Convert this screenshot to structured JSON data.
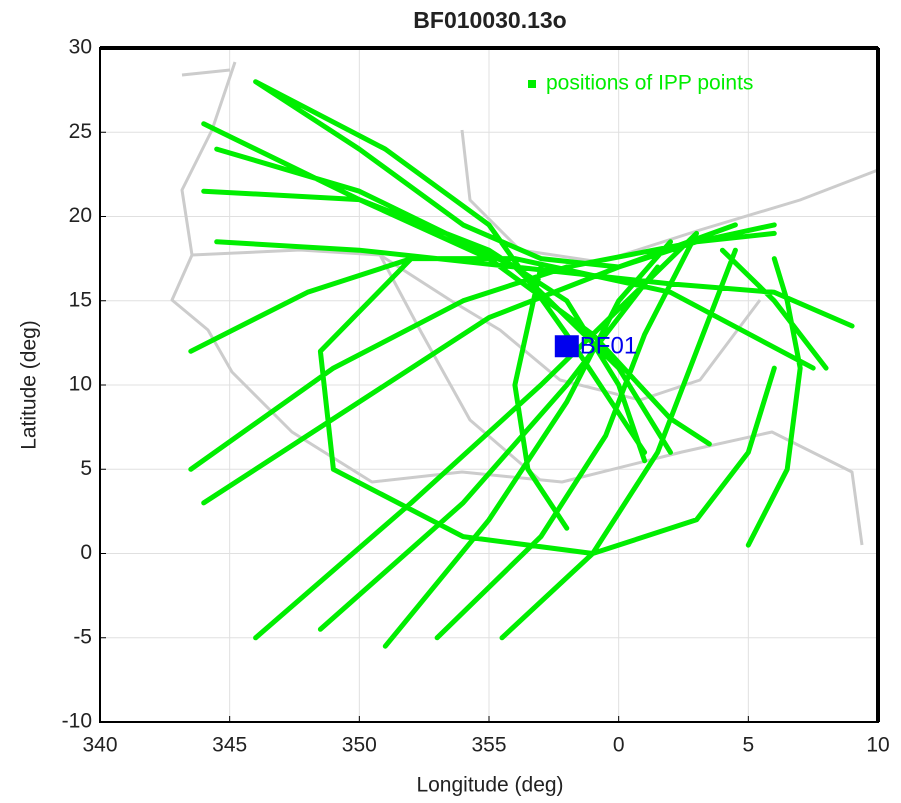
{
  "chart_data": {
    "type": "line",
    "title": "BF010030.13o",
    "x_label": "Longitude  (deg)",
    "y_label": "Latitude (deg)",
    "xlim": [
      340,
      370
    ],
    "ylim": [
      -10,
      30
    ],
    "xticks": [
      340,
      345,
      350,
      355,
      {
        "value": 360,
        "label": "0"
      },
      {
        "value": 365,
        "label": "5"
      },
      {
        "value": 370,
        "label": "10"
      }
    ],
    "yticks": [
      -10,
      -5,
      0,
      5,
      10,
      15,
      20,
      25,
      30
    ],
    "grid": true,
    "legend": "upper right",
    "series": [
      {
        "name": "positions of IPP points",
        "color": "#00ee00",
        "x": [
          346,
          350,
          354,
          357,
          360,
          363,
          366,
          null,
          344,
          350,
          355,
          359,
          362,
          363.5,
          null,
          344.5,
          350,
          356,
          360,
          362,
          null,
          344,
          350,
          355,
          358,
          360,
          361,
          null,
          344.5,
          350,
          356,
          362,
          366,
          369,
          null,
          343.5,
          348,
          352,
          356,
          362,
          367.5,
          null,
          352,
          348.5,
          349,
          354,
          359,
          363,
          365,
          366,
          null,
          343.5,
          349,
          354,
          358,
          363,
          366,
          null,
          344,
          350,
          355,
          360,
          364.5,
          null,
          346,
          352,
          357,
          361,
          363,
          null,
          348.5,
          354,
          358,
          361.5,
          null,
          351,
          355,
          358,
          360,
          362,
          null,
          353,
          357,
          359.5,
          361,
          363,
          null,
          355.5,
          359,
          361.5,
          363,
          364.5,
          null,
          365,
          366.5,
          367,
          366.5,
          366,
          null,
          368,
          366,
          364,
          null,
          346,
          351,
          355,
          358,
          361,
          null,
          357,
          356,
          356.5,
          358
        ],
        "values": [
          28,
          24,
          19.5,
          17.5,
          17,
          18.5,
          19.5,
          null,
          25.5,
          21,
          17.5,
          13,
          8,
          6.5,
          null,
          24,
          21.5,
          17,
          11,
          6,
          null,
          21.5,
          21,
          18,
          15,
          10,
          5.5,
          null,
          18.5,
          18,
          17,
          16,
          15.5,
          13.5,
          null,
          12,
          15.5,
          17.5,
          17.5,
          15.5,
          11,
          null,
          17.5,
          12,
          5,
          1,
          0,
          2,
          6,
          11,
          null,
          5,
          11,
          15,
          17,
          18.5,
          19,
          null,
          3,
          9,
          14,
          17,
          19.5,
          null,
          -5,
          3,
          10,
          16,
          19,
          null,
          -4.5,
          3,
          10,
          17,
          null,
          -5.5,
          2,
          9,
          15,
          18.5,
          null,
          -5,
          1,
          7,
          13,
          19,
          null,
          -5,
          0,
          6,
          12,
          18,
          null,
          0.5,
          5,
          11,
          15,
          17.5,
          null,
          11,
          15,
          18,
          null,
          28,
          24,
          19.5,
          13,
          6,
          null,
          17,
          10,
          5,
          1.5
        ]
      }
    ],
    "station": {
      "name": "BF01",
      "x": 358,
      "y": 12.3,
      "color": "#0000ee"
    }
  }
}
